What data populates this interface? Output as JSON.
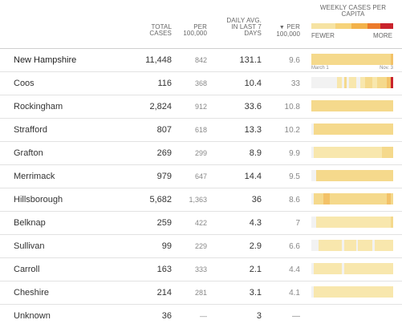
{
  "header": {
    "total_cases": "TOTAL CASES",
    "per_100k": "PER 100,000",
    "daily_avg": "DAILY AVG. IN LAST 7 DAYS",
    "sort_arrow": "▼",
    "per_100k_2": "PER 100,000",
    "weekly": "WEEKLY CASES PER CAPITA",
    "fewer": "FEWER",
    "more": "MORE"
  },
  "legend_colors": [
    "#f6e3a3",
    "#f6d37a",
    "#f3b24a",
    "#ec7a2b",
    "#c9232c"
  ],
  "date_start": "March 1",
  "date_end": "Nov. 3",
  "rows": [
    {
      "name": "New Hampshire",
      "total": "11,448",
      "per": "842",
      "daily": "131.1",
      "per2": "9.6",
      "spark": [
        2,
        2,
        2,
        2,
        2,
        2,
        2,
        2,
        2,
        2,
        2,
        2,
        2,
        2,
        2,
        2,
        2,
        2,
        2,
        2,
        2,
        2,
        2,
        2,
        2,
        2,
        2,
        2,
        2,
        2,
        2,
        2,
        2,
        2,
        3
      ]
    },
    {
      "name": "Coos",
      "total": "116",
      "per": "368",
      "daily": "10.4",
      "per2": "33",
      "spark": [
        0,
        0,
        0,
        0,
        0,
        0,
        0,
        0,
        0,
        0,
        0,
        1,
        1,
        0,
        2,
        0,
        1,
        1,
        1,
        0,
        0,
        1,
        1,
        2,
        2,
        2,
        1,
        1,
        2,
        2,
        2,
        2,
        3,
        3,
        5
      ]
    },
    {
      "name": "Rockingham",
      "total": "2,824",
      "per": "912",
      "daily": "33.6",
      "per2": "10.8",
      "spark": [
        2,
        2,
        2,
        2,
        2,
        2,
        2,
        2,
        2,
        2,
        2,
        2,
        2,
        2,
        2,
        2,
        2,
        2,
        2,
        2,
        2,
        2,
        2,
        2,
        2,
        2,
        2,
        2,
        2,
        2,
        2,
        2,
        2,
        2,
        2
      ]
    },
    {
      "name": "Strafford",
      "total": "807",
      "per": "618",
      "daily": "13.3",
      "per2": "10.2",
      "spark": [
        0,
        2,
        2,
        2,
        2,
        2,
        2,
        2,
        2,
        2,
        2,
        2,
        2,
        2,
        2,
        2,
        2,
        2,
        2,
        2,
        2,
        2,
        2,
        2,
        2,
        2,
        2,
        2,
        2,
        2,
        2,
        2,
        2,
        2,
        2
      ]
    },
    {
      "name": "Grafton",
      "total": "269",
      "per": "299",
      "daily": "8.9",
      "per2": "9.9",
      "spark": [
        0,
        1,
        1,
        1,
        1,
        1,
        1,
        1,
        1,
        1,
        1,
        1,
        1,
        1,
        1,
        1,
        1,
        1,
        1,
        1,
        1,
        1,
        1,
        1,
        1,
        1,
        1,
        1,
        1,
        1,
        2,
        2,
        2,
        2,
        2
      ]
    },
    {
      "name": "Merrimack",
      "total": "979",
      "per": "647",
      "daily": "14.4",
      "per2": "9.5",
      "spark": [
        0,
        0,
        2,
        2,
        2,
        2,
        2,
        2,
        2,
        2,
        2,
        2,
        2,
        2,
        2,
        2,
        2,
        2,
        2,
        2,
        2,
        2,
        2,
        2,
        2,
        2,
        2,
        2,
        2,
        2,
        2,
        2,
        2,
        2,
        2
      ]
    },
    {
      "name": "Hillsborough",
      "total": "5,682",
      "per": "1,363",
      "daily": "36",
      "per2": "8.6",
      "spark": [
        0,
        2,
        2,
        2,
        2,
        3,
        3,
        3,
        2,
        2,
        2,
        2,
        2,
        2,
        2,
        2,
        2,
        2,
        2,
        2,
        2,
        2,
        2,
        2,
        2,
        2,
        2,
        2,
        2,
        2,
        2,
        2,
        3,
        3,
        2
      ]
    },
    {
      "name": "Belknap",
      "total": "259",
      "per": "422",
      "daily": "4.3",
      "per2": "7",
      "spark": [
        0,
        0,
        1,
        1,
        1,
        1,
        1,
        1,
        1,
        1,
        1,
        1,
        1,
        1,
        1,
        1,
        1,
        1,
        1,
        1,
        1,
        1,
        1,
        1,
        1,
        1,
        1,
        1,
        1,
        1,
        1,
        1,
        1,
        1,
        2
      ]
    },
    {
      "name": "Sullivan",
      "total": "99",
      "per": "229",
      "daily": "2.9",
      "per2": "6.6",
      "spark": [
        0,
        0,
        0,
        1,
        1,
        1,
        1,
        1,
        1,
        1,
        1,
        1,
        1,
        0,
        1,
        1,
        1,
        1,
        1,
        0,
        1,
        1,
        1,
        1,
        1,
        1,
        0,
        1,
        1,
        1,
        1,
        1,
        1,
        1,
        1
      ]
    },
    {
      "name": "Carroll",
      "total": "163",
      "per": "333",
      "daily": "2.1",
      "per2": "4.4",
      "spark": [
        0,
        1,
        1,
        1,
        1,
        1,
        1,
        1,
        1,
        1,
        1,
        1,
        1,
        0,
        1,
        1,
        1,
        1,
        1,
        1,
        1,
        1,
        1,
        1,
        1,
        1,
        1,
        1,
        1,
        1,
        1,
        1,
        1,
        1,
        1
      ]
    },
    {
      "name": "Cheshire",
      "total": "214",
      "per": "281",
      "daily": "3.1",
      "per2": "4.1",
      "spark": [
        0,
        1,
        1,
        1,
        1,
        1,
        1,
        1,
        1,
        1,
        1,
        1,
        1,
        1,
        1,
        1,
        1,
        1,
        1,
        1,
        1,
        1,
        1,
        1,
        1,
        1,
        1,
        1,
        1,
        1,
        1,
        1,
        1,
        1,
        1
      ]
    },
    {
      "name": "Unknown",
      "total": "36",
      "per": "—",
      "daily": "3",
      "per2": "—",
      "spark": []
    }
  ]
}
